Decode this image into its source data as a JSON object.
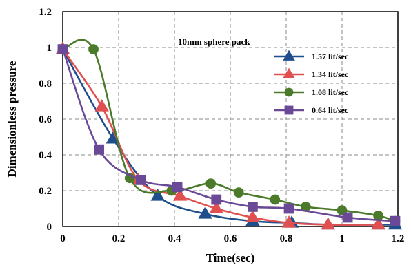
{
  "chart_data": {
    "type": "line",
    "title": "",
    "xlabel": "Time(sec)",
    "ylabel": "Dimensionless pressure",
    "xlim": [
      0,
      1.2
    ],
    "ylim": [
      0,
      1.2
    ],
    "xticks": [
      0,
      0.2,
      0.4,
      0.6,
      0.8,
      1,
      1.2
    ],
    "yticks": [
      0,
      0.2,
      0.4,
      0.6,
      0.8,
      1,
      1.2
    ],
    "xtick_labels": [
      "0",
      "0.2",
      "0.4",
      "0.6",
      "0.8",
      "1",
      "1.2"
    ],
    "ytick_labels": [
      "0",
      "0.2",
      "0.4",
      "0.6",
      "0.8",
      "1",
      "1.2"
    ],
    "grid": true,
    "legend_title": "10mm sphere pack",
    "legend_position": "top-right",
    "series": [
      {
        "name": "1.57 lit/sec",
        "color": "#1f4e8c",
        "marker": "triangle",
        "x": [
          0,
          0.18,
          0.34,
          0.51,
          0.68,
          0.82,
          0.95,
          1.13,
          1.19
        ],
        "y": [
          0.99,
          0.49,
          0.17,
          0.07,
          0.03,
          0.02,
          0.01,
          0.01,
          0.01
        ]
      },
      {
        "name": "1.34 lit/sec",
        "color": "#e05050",
        "marker": "triangle",
        "x": [
          0,
          0.14,
          0.27,
          0.42,
          0.55,
          0.68,
          0.81,
          0.95,
          1.13
        ],
        "y": [
          0.99,
          0.67,
          0.26,
          0.17,
          0.1,
          0.05,
          0.02,
          0.01,
          0.01
        ]
      },
      {
        "name": "1.08 lit/sec",
        "color": "#4a7a2a",
        "marker": "circle",
        "x": [
          0,
          0.11,
          0.24,
          0.39,
          0.53,
          0.63,
          0.76,
          0.87,
          1.0,
          1.13,
          1.19
        ],
        "y": [
          0.99,
          0.99,
          0.27,
          0.2,
          0.24,
          0.19,
          0.15,
          0.11,
          0.09,
          0.06,
          0.03
        ]
      },
      {
        "name": "0.64 lit/sec",
        "color": "#6a4a96",
        "marker": "square",
        "x": [
          0,
          0.13,
          0.28,
          0.41,
          0.55,
          0.68,
          0.81,
          1.02,
          1.19
        ],
        "y": [
          0.99,
          0.43,
          0.26,
          0.22,
          0.15,
          0.11,
          0.1,
          0.05,
          0.03
        ]
      }
    ]
  }
}
